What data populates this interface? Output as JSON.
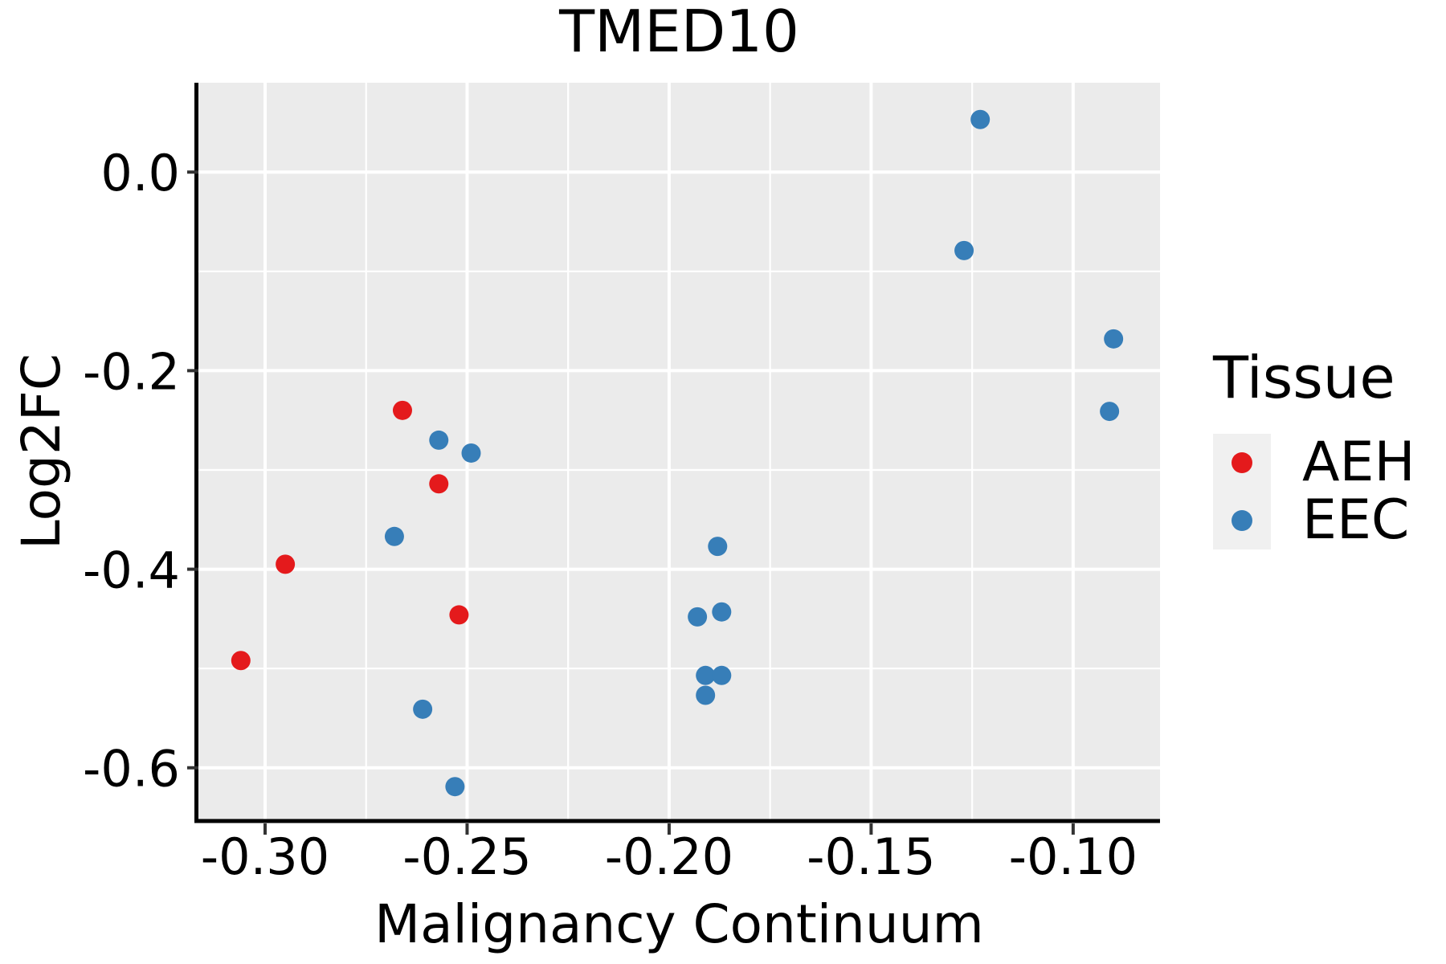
{
  "chart": {
    "title": "TMED10",
    "x_axis_label": "Malignancy Continuum",
    "y_axis_label": "Log2FC"
  },
  "legend": {
    "title": "Tissue"
  },
  "chart_data": {
    "type": "scatter",
    "title": "TMED10",
    "xlabel": "Malignancy Continuum",
    "ylabel": "Log2FC",
    "xlim": [
      -0.3165,
      -0.0785
    ],
    "ylim": [
      -0.652,
      0.09
    ],
    "x_ticks": [
      -0.3,
      -0.25,
      -0.2,
      -0.15,
      -0.1
    ],
    "x_tick_labels": [
      "-0.30",
      "-0.25",
      "-0.20",
      "-0.15",
      "-0.10"
    ],
    "x_minor_ticks": [
      -0.275,
      -0.225,
      -0.175,
      -0.125
    ],
    "y_ticks": [
      0.0,
      -0.2,
      -0.4,
      -0.6
    ],
    "y_tick_labels": [
      "0.0",
      "-0.2",
      "-0.4",
      "-0.6"
    ],
    "y_minor_ticks": [
      -0.1,
      -0.3,
      -0.5
    ],
    "grid": true,
    "legend_position": "right",
    "panel_bg": "#EBEBEB",
    "grid_color": "#FFFFFF",
    "axis_line_color": "#000000",
    "tick_color": "#333333",
    "point_radius_px": 12,
    "series": [
      {
        "name": "AEH",
        "color": "#E41A1C",
        "points": [
          [
            -0.306,
            -0.492
          ],
          [
            -0.295,
            -0.395
          ],
          [
            -0.266,
            -0.24
          ],
          [
            -0.257,
            -0.314
          ],
          [
            -0.252,
            -0.446
          ]
        ]
      },
      {
        "name": "EEC",
        "color": "#377EB8",
        "points": [
          [
            -0.268,
            -0.367
          ],
          [
            -0.257,
            -0.27
          ],
          [
            -0.249,
            -0.283
          ],
          [
            -0.261,
            -0.541
          ],
          [
            -0.253,
            -0.619
          ],
          [
            -0.193,
            -0.448
          ],
          [
            -0.188,
            -0.377
          ],
          [
            -0.187,
            -0.443
          ],
          [
            -0.191,
            -0.507
          ],
          [
            -0.187,
            -0.507
          ],
          [
            -0.191,
            -0.527
          ],
          [
            -0.127,
            -0.079
          ],
          [
            -0.123,
            0.053
          ],
          [
            -0.091,
            -0.241
          ],
          [
            -0.09,
            -0.168
          ]
        ]
      }
    ]
  }
}
